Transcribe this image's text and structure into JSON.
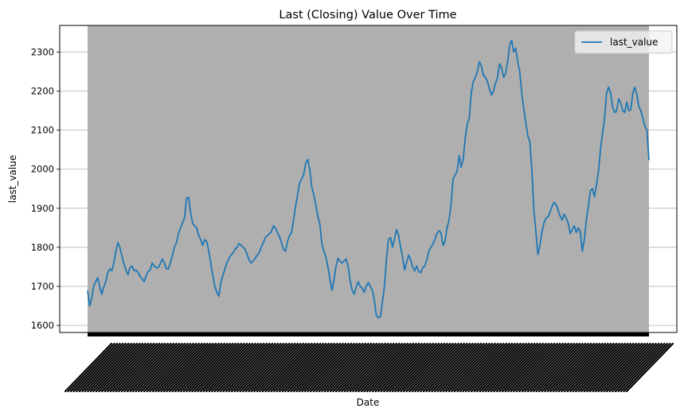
{
  "chart_data": {
    "type": "line",
    "title": "Last (Closing) Value Over Time",
    "xlabel": "Date",
    "ylabel": "last_value",
    "ylim": [
      1582,
      2368
    ],
    "yticks": [
      1600,
      1700,
      1800,
      1900,
      2000,
      2100,
      2200,
      2300
    ],
    "grid": "y-axis only",
    "legend_position": "top-right",
    "x_tick_labels_legible": false,
    "series": [
      {
        "name": "last_value",
        "color": "#1f77b4",
        "values": [
          1690,
          1650,
          1668,
          1700,
          1712,
          1722,
          1700,
          1680,
          1698,
          1712,
          1735,
          1745,
          1740,
          1760,
          1790,
          1812,
          1800,
          1778,
          1758,
          1742,
          1730,
          1748,
          1752,
          1740,
          1742,
          1736,
          1725,
          1720,
          1712,
          1728,
          1738,
          1742,
          1760,
          1752,
          1748,
          1748,
          1758,
          1770,
          1760,
          1745,
          1745,
          1760,
          1780,
          1800,
          1812,
          1835,
          1850,
          1862,
          1875,
          1925,
          1928,
          1890,
          1862,
          1855,
          1850,
          1830,
          1820,
          1805,
          1820,
          1815,
          1790,
          1760,
          1728,
          1700,
          1685,
          1675,
          1710,
          1728,
          1745,
          1760,
          1772,
          1780,
          1785,
          1795,
          1800,
          1810,
          1805,
          1800,
          1795,
          1782,
          1768,
          1760,
          1765,
          1772,
          1780,
          1786,
          1800,
          1812,
          1825,
          1830,
          1835,
          1840,
          1855,
          1850,
          1838,
          1828,
          1812,
          1795,
          1790,
          1815,
          1830,
          1838,
          1870,
          1905,
          1935,
          1965,
          1975,
          1985,
          2015,
          2025,
          2000,
          1955,
          1935,
          1910,
          1880,
          1860,
          1810,
          1790,
          1775,
          1750,
          1720,
          1690,
          1715,
          1750,
          1772,
          1765,
          1760,
          1765,
          1770,
          1752,
          1715,
          1690,
          1680,
          1698,
          1712,
          1700,
          1695,
          1685,
          1700,
          1710,
          1700,
          1690,
          1665,
          1625,
          1620,
          1622,
          1660,
          1700,
          1770,
          1820,
          1825,
          1800,
          1822,
          1845,
          1832,
          1800,
          1775,
          1742,
          1762,
          1780,
          1768,
          1750,
          1740,
          1752,
          1738,
          1735,
          1748,
          1752,
          1768,
          1790,
          1800,
          1808,
          1820,
          1835,
          1842,
          1838,
          1805,
          1815,
          1850,
          1870,
          1910,
          1975,
          1985,
          1995,
          2035,
          2005,
          2025,
          2080,
          2115,
          2130,
          2195,
          2225,
          2235,
          2250,
          2275,
          2265,
          2240,
          2235,
          2225,
          2205,
          2190,
          2200,
          2220,
          2235,
          2270,
          2260,
          2235,
          2245,
          2275,
          2318,
          2330,
          2300,
          2310,
          2275,
          2250,
          2195,
          2155,
          2120,
          2085,
          2070,
          2000,
          1895,
          1840,
          1782,
          1805,
          1840,
          1862,
          1875,
          1878,
          1890,
          1905,
          1915,
          1910,
          1895,
          1880,
          1870,
          1885,
          1875,
          1862,
          1835,
          1845,
          1855,
          1838,
          1850,
          1840,
          1790,
          1820,
          1870,
          1905,
          1945,
          1950,
          1930,
          1960,
          1995,
          2050,
          2092,
          2130,
          2195,
          2210,
          2195,
          2160,
          2145,
          2150,
          2180,
          2170,
          2150,
          2145,
          2172,
          2150,
          2152,
          2195,
          2210,
          2190,
          2160,
          2150,
          2130,
          2110,
          2100,
          2023
        ]
      }
    ]
  }
}
